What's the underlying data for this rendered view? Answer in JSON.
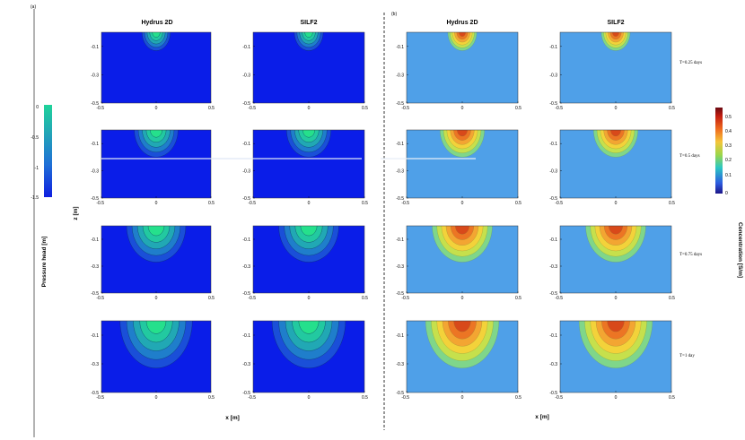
{
  "panel_a_label": "(a)",
  "panel_b_label": "(b)",
  "column_titles": [
    "Hydrus 2D",
    "SILF2",
    "Hydrus 2D",
    "SILF2"
  ],
  "time_labels": [
    "T=0.25 days",
    "T=0.5 days",
    "T=0.75 days",
    "T=1 day"
  ],
  "x_axis_label": "x [m]",
  "z_axis_label": "z [m]",
  "pressure_colorbar": {
    "label": "Pressure head [m]",
    "ticks": [
      "0",
      "-0.5",
      "-1",
      "-1.5"
    ],
    "colors": [
      "#0f1fe0",
      "#1f6fd6",
      "#22a6b6",
      "#1fd39a"
    ]
  },
  "concentration_colorbar": {
    "label": "Concentration [S/m]",
    "ticks": [
      "0.5",
      "0.4",
      "0.3",
      "0.2",
      "0.1",
      "0"
    ],
    "colors": [
      "#6a0a12",
      "#c41d10",
      "#ef6b1e",
      "#f4c53a",
      "#9bd64a",
      "#2bc7c3",
      "#2d5be0",
      "#1c1587"
    ]
  },
  "chart_data": {
    "type": "heatmap",
    "x_ticks": [
      "-0.5",
      "0",
      "0.5"
    ],
    "x_ticks_silf2": [
      "-0.5",
      "0",
      "0.5"
    ],
    "z_ticks": [
      "-0.1",
      "-0.3",
      "-0.5"
    ],
    "xlim": [
      -0.5,
      0.5
    ],
    "zlim": [
      -0.5,
      0
    ],
    "rows": [
      {
        "time": "T=0.25 days",
        "plume_radius": 0.13
      },
      {
        "time": "T=0.5 days",
        "plume_radius": 0.2
      },
      {
        "time": "T=0.75 days",
        "plume_radius": 0.27
      },
      {
        "time": "T=1 day",
        "plume_radius": 0.33
      }
    ],
    "pressure_background": "#0a1de8",
    "pressure_plume_colors": [
      "#1a4fd8",
      "#1f7ecb",
      "#21a8b4",
      "#22c9a0",
      "#25e08c"
    ],
    "concentration_background": "#4fa0e8",
    "concentration_plume_colors": [
      "#7fd68a",
      "#c6e04c",
      "#f3d23a",
      "#f3a532",
      "#ec7524",
      "#d8491a"
    ]
  }
}
